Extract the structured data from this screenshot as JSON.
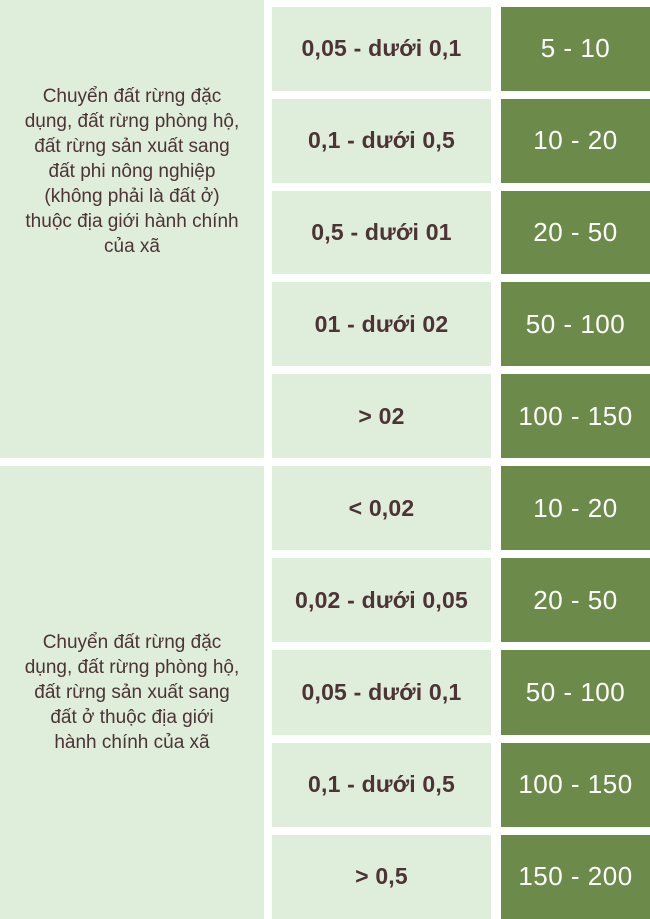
{
  "colors": {
    "cell_light": "#dfeeda",
    "cell_dark": "#6c8b4a",
    "text_dark": "#4d3236",
    "text_light": "#ffffff",
    "gap_white": "#ffffff"
  },
  "table": {
    "sections": [
      {
        "category": "Chuyển đất rừng đặc\ndụng, đất rừng phòng hộ,\nđất rừng sản xuất sang\nđất phi nông nghiệp\n(không phải là đất ở)\nthuộc địa giới hành chính\ncủa xã",
        "rows": [
          {
            "range": "0,05 - dưới 0,1",
            "value": "5 - 10"
          },
          {
            "range": "0,1 - dưới 0,5",
            "value": "10 - 20"
          },
          {
            "range": "0,5 - dưới 01",
            "value": "20 - 50"
          },
          {
            "range": "01 - dưới 02",
            "value": "50 - 100"
          },
          {
            "range": "> 02",
            "value": "100 - 150"
          }
        ]
      },
      {
        "category": "Chuyển đất rừng đặc\ndụng, đất rừng phòng hộ,\nđất rừng sản xuất sang\nđất ở thuộc địa giới\nhành chính của xã",
        "rows": [
          {
            "range": "< 0,02",
            "value": "10 - 20"
          },
          {
            "range": "0,02 - dưới 0,05",
            "value": "20 - 50"
          },
          {
            "range": "0,05 - dưới 0,1",
            "value": "50 - 100"
          },
          {
            "range": "0,1 - dưới 0,5",
            "value": "100 - 150"
          },
          {
            "range": "> 0,5",
            "value": "150 - 200"
          }
        ]
      }
    ]
  }
}
